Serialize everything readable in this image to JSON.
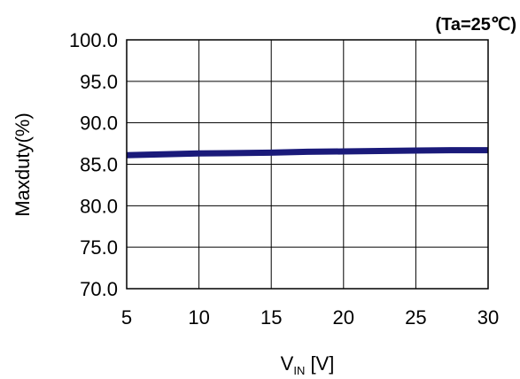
{
  "chart_data": {
    "type": "line",
    "annotation": "(Ta=25℃)",
    "xlabel": {
      "main": "V",
      "sub": "IN",
      "unit": " [V]"
    },
    "ylabel": "Maxduty(%)",
    "xlim": [
      5,
      30
    ],
    "ylim": [
      70,
      100
    ],
    "x_ticks": [
      "5",
      "10",
      "15",
      "20",
      "25",
      "30"
    ],
    "y_ticks": [
      "100.0",
      "95.0",
      "90.0",
      "85.0",
      "80.0",
      "75.0",
      "70.0"
    ],
    "grid": true,
    "legend": "none",
    "series": [
      {
        "color": "#1a1a7a",
        "x": [
          5,
          7.5,
          10,
          12.5,
          15,
          17.5,
          20,
          22.5,
          25,
          27.5,
          30
        ],
        "y": [
          86.1,
          86.2,
          86.3,
          86.35,
          86.4,
          86.5,
          86.55,
          86.6,
          86.65,
          86.7,
          86.7
        ]
      }
    ]
  }
}
